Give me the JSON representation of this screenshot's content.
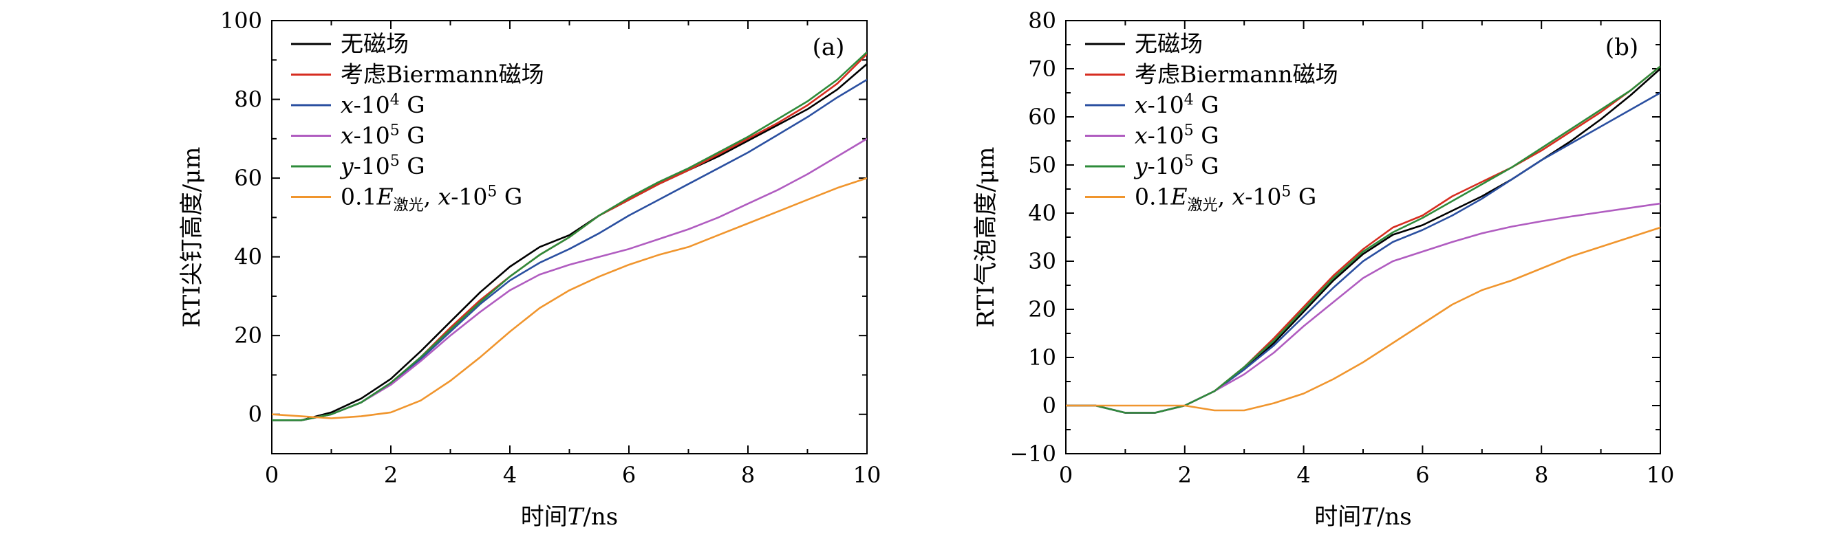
{
  "chart_data": [
    {
      "type": "line",
      "panel_label": "(a)",
      "xlabel": "时间T/ns",
      "ylabel": "RTI尖钉高度/μm",
      "xlim": [
        0,
        10
      ],
      "ylim": [
        -10,
        100
      ],
      "xticks": [
        "0",
        "2",
        "4",
        "6",
        "8",
        "10"
      ],
      "yticks": [
        "0",
        "20",
        "40",
        "60",
        "80",
        "100"
      ],
      "legend_position": "top-left",
      "grid": false,
      "series": [
        {
          "name": "无磁场",
          "color": "#000000",
          "x": [
            0,
            0.5,
            1,
            1.5,
            2,
            2.5,
            3,
            3.5,
            4,
            4.5,
            5,
            5.5,
            6,
            6.5,
            7,
            7.5,
            8,
            8.5,
            9,
            9.5,
            10
          ],
          "y": [
            -1.5,
            -1.5,
            0.5,
            4,
            9,
            16,
            23.5,
            31,
            37.5,
            42.5,
            45.5,
            50.5,
            54.5,
            58.5,
            62,
            65.5,
            69.5,
            73.5,
            77.5,
            82.5,
            89
          ]
        },
        {
          "name": "考虑Biermann磁场",
          "color": "#d62d20",
          "x": [
            0,
            0.5,
            1,
            1.5,
            2,
            2.5,
            3,
            3.5,
            4,
            4.5,
            5,
            5.5,
            6,
            6.5,
            7,
            7.5,
            8,
            8.5,
            9,
            9.5,
            10
          ],
          "y": [
            -1.5,
            -1.5,
            0,
            3,
            8,
            14.5,
            22,
            29,
            35,
            40.5,
            45,
            50.5,
            54.5,
            58.5,
            62,
            66,
            70,
            74,
            78.5,
            84,
            91.5
          ]
        },
        {
          "name": "x-10⁴ G",
          "color": "#2a4fa0",
          "x": [
            0,
            0.5,
            1,
            1.5,
            2,
            2.5,
            3,
            3.5,
            4,
            4.5,
            5,
            5.5,
            6,
            6.5,
            7,
            7.5,
            8,
            8.5,
            9,
            9.5,
            10
          ],
          "y": [
            -1.5,
            -1.5,
            0,
            3,
            8,
            14,
            21,
            28,
            34,
            38.5,
            42,
            46,
            50.5,
            54.5,
            58.5,
            62.5,
            66.5,
            71,
            75.5,
            80.5,
            85
          ]
        },
        {
          "name": "x-10⁵ G",
          "color": "#b05cc0",
          "x": [
            0,
            0.5,
            1,
            1.5,
            2,
            2.5,
            3,
            3.5,
            4,
            4.5,
            5,
            5.5,
            6,
            6.5,
            7,
            7.5,
            8,
            8.5,
            9,
            9.5,
            10
          ],
          "y": [
            -1.5,
            -1.5,
            0,
            3,
            7.5,
            13.5,
            20,
            26,
            31.5,
            35.5,
            38,
            40,
            42,
            44.5,
            47,
            50,
            53.5,
            57,
            61,
            65.5,
            70
          ]
        },
        {
          "name": "y-10⁵ G",
          "color": "#2e8b3a",
          "x": [
            0,
            0.5,
            1,
            1.5,
            2,
            2.5,
            3,
            3.5,
            4,
            4.5,
            5,
            5.5,
            6,
            6.5,
            7,
            7.5,
            8,
            8.5,
            9,
            9.5,
            10
          ],
          "y": [
            -1.5,
            -1.5,
            0,
            3,
            8,
            14.5,
            21.5,
            28.5,
            35,
            40.5,
            45,
            50.5,
            55,
            59,
            62.5,
            66.5,
            70.5,
            75,
            79.5,
            85,
            92
          ]
        },
        {
          "name": "0.1E激光, x-10⁵ G",
          "color": "#f0952d",
          "x": [
            0,
            0.5,
            1,
            1.5,
            2,
            2.5,
            3,
            3.5,
            4,
            4.5,
            5,
            5.5,
            6,
            6.5,
            7,
            7.5,
            8,
            8.5,
            9,
            9.5,
            10
          ],
          "y": [
            0,
            -0.5,
            -1,
            -0.5,
            0.5,
            3.5,
            8.5,
            14.5,
            21,
            27,
            31.5,
            35,
            38,
            40.5,
            42.5,
            45.5,
            48.5,
            51.5,
            54.5,
            57.5,
            60
          ]
        }
      ]
    },
    {
      "type": "line",
      "panel_label": "(b)",
      "xlabel": "时间T/ns",
      "ylabel": "RTI气泡高度/μm",
      "xlim": [
        0,
        10
      ],
      "ylim": [
        -10,
        80
      ],
      "xticks": [
        "0",
        "2",
        "4",
        "6",
        "8",
        "10"
      ],
      "yticks": [
        "−10",
        "0",
        "10",
        "20",
        "30",
        "40",
        "50",
        "60",
        "70",
        "80"
      ],
      "legend_position": "top-left",
      "grid": false,
      "series": [
        {
          "name": "无磁场",
          "color": "#000000",
          "x": [
            0,
            0.5,
            1,
            1.5,
            2,
            2.5,
            3,
            3.5,
            4,
            4.5,
            5,
            5.5,
            6,
            6.5,
            7,
            7.5,
            8,
            8.5,
            9,
            9.5,
            10
          ],
          "y": [
            0,
            0,
            -1.5,
            -1.5,
            0,
            3,
            7.5,
            13,
            19.5,
            26,
            31.5,
            35.5,
            37.5,
            40.5,
            43.5,
            47,
            51,
            55,
            59.5,
            64.5,
            70
          ]
        },
        {
          "name": "考虑Biermann磁场",
          "color": "#d62d20",
          "x": [
            0,
            0.5,
            1,
            1.5,
            2,
            2.5,
            3,
            3.5,
            4,
            4.5,
            5,
            5.5,
            6,
            6.5,
            7,
            7.5,
            8,
            8.5,
            9,
            9.5,
            10
          ],
          "y": [
            0,
            0,
            -1.5,
            -1.5,
            0,
            3,
            8,
            14,
            20.5,
            27,
            32.5,
            37,
            39.5,
            43.5,
            46.5,
            49.5,
            53,
            57,
            61,
            65.5,
            70.5
          ]
        },
        {
          "name": "x-10⁴ G",
          "color": "#2a4fa0",
          "x": [
            0,
            0.5,
            1,
            1.5,
            2,
            2.5,
            3,
            3.5,
            4,
            4.5,
            5,
            5.5,
            6,
            6.5,
            7,
            7.5,
            8,
            8.5,
            9,
            9.5,
            10
          ],
          "y": [
            0,
            0,
            -1.5,
            -1.5,
            0,
            3,
            7.5,
            12.5,
            18.5,
            24.5,
            30,
            34,
            36.5,
            39.5,
            43,
            47,
            51,
            54.5,
            58,
            61.5,
            65
          ]
        },
        {
          "name": "x-10⁵ G",
          "color": "#b05cc0",
          "x": [
            0,
            0.5,
            1,
            1.5,
            2,
            2.5,
            3,
            3.5,
            4,
            4.5,
            5,
            5.5,
            6,
            6.5,
            7,
            7.5,
            8,
            8.5,
            9,
            9.5,
            10
          ],
          "y": [
            0,
            0,
            -1.5,
            -1.5,
            0,
            3,
            6.5,
            11,
            16.5,
            21.5,
            26.5,
            30,
            32,
            34,
            35.8,
            37.2,
            38.3,
            39.3,
            40.2,
            41.1,
            42
          ]
        },
        {
          "name": "y-10⁵ G",
          "color": "#2e8b3a",
          "x": [
            0,
            0.5,
            1,
            1.5,
            2,
            2.5,
            3,
            3.5,
            4,
            4.5,
            5,
            5.5,
            6,
            6.5,
            7,
            7.5,
            8,
            8.5,
            9,
            9.5,
            10
          ],
          "y": [
            0,
            0,
            -1.5,
            -1.5,
            0,
            3,
            8,
            13.5,
            20,
            26.5,
            32,
            36,
            39,
            42.5,
            46,
            49.5,
            53.5,
            57.5,
            61.5,
            65.5,
            70.5
          ]
        },
        {
          "name": "0.1E激光, x-10⁵ G",
          "color": "#f0952d",
          "x": [
            0,
            0.5,
            1,
            1.5,
            2,
            2.5,
            3,
            3.5,
            4,
            4.5,
            5,
            5.5,
            6,
            6.5,
            7,
            7.5,
            8,
            8.5,
            9,
            9.5,
            10
          ],
          "y": [
            0,
            0,
            0,
            0,
            0,
            -1,
            -1,
            0.5,
            2.5,
            5.5,
            9,
            13,
            17,
            21,
            24,
            26,
            28.5,
            31,
            33,
            35,
            37
          ]
        }
      ]
    }
  ]
}
